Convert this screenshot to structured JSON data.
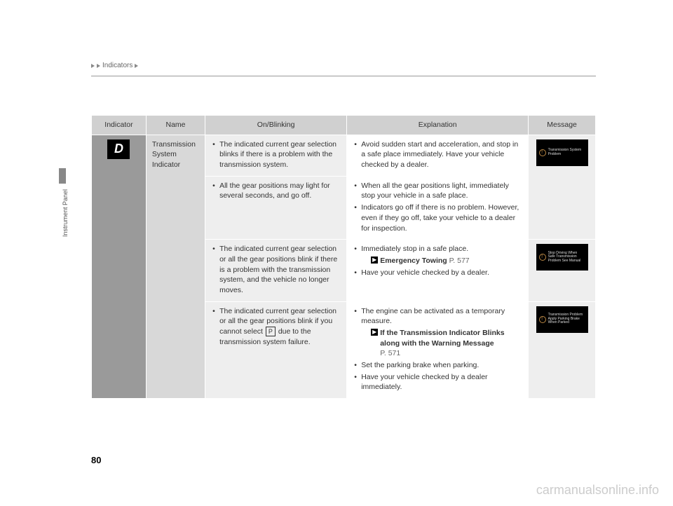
{
  "header": {
    "nav_text": "Indicators"
  },
  "side": {
    "label": "Instrument Panel"
  },
  "page_number": "80",
  "watermark": "carmanualsonline.info",
  "table": {
    "headers": {
      "indicator": "Indicator",
      "name": "Name",
      "onblink": "On/Blinking",
      "explanation": "Explanation",
      "message": "Message"
    },
    "indicator_label": "D",
    "name": "Transmission System Indicator",
    "rows": [
      {
        "onblink": "The indicated current gear selection blinks if there is a problem with the transmission system.",
        "explanation_items": [
          "Avoid sudden start and acceleration, and stop in a safe place immediately. Have your vehicle checked by a dealer."
        ],
        "message_text": "Transmission System Problem"
      },
      {
        "onblink": "All the gear positions may light for several seconds, and go off.",
        "explanation_items": [
          "When all the gear positions light, immediately stop your vehicle in a safe place.",
          "Indicators go off if there is no problem. However, even if they go off, take your vehicle to a dealer for inspection."
        ]
      },
      {
        "onblink": "The indicated current gear selection or all the gear positions blink if there is a problem with the transmission system, and the vehicle no longer moves.",
        "explanation_items": [
          "Immediately stop in a safe place."
        ],
        "ref1_label": "Emergency Towing",
        "ref1_page": "P. 577",
        "explanation_items2": [
          "Have your vehicle checked by a dealer."
        ],
        "message_text": "Stop Driving When Safe Transmission Problem See Manual"
      },
      {
        "onblink_pre": "The indicated current gear selection or all the gear positions blink if you cannot select ",
        "onblink_p": "P",
        "onblink_post": " due to the transmission system failure.",
        "explanation_items": [
          "The engine can be activated as a temporary measure."
        ],
        "ref1_label": "If the Transmission Indicator Blinks along with the Warning Message",
        "ref1_page": "P. 571",
        "explanation_items2": [
          "Set the parking brake when parking.",
          "Have your vehicle checked by a dealer immediately."
        ],
        "message_text": "Transmission Problem Apply Parking Brake When Parked"
      }
    ]
  }
}
